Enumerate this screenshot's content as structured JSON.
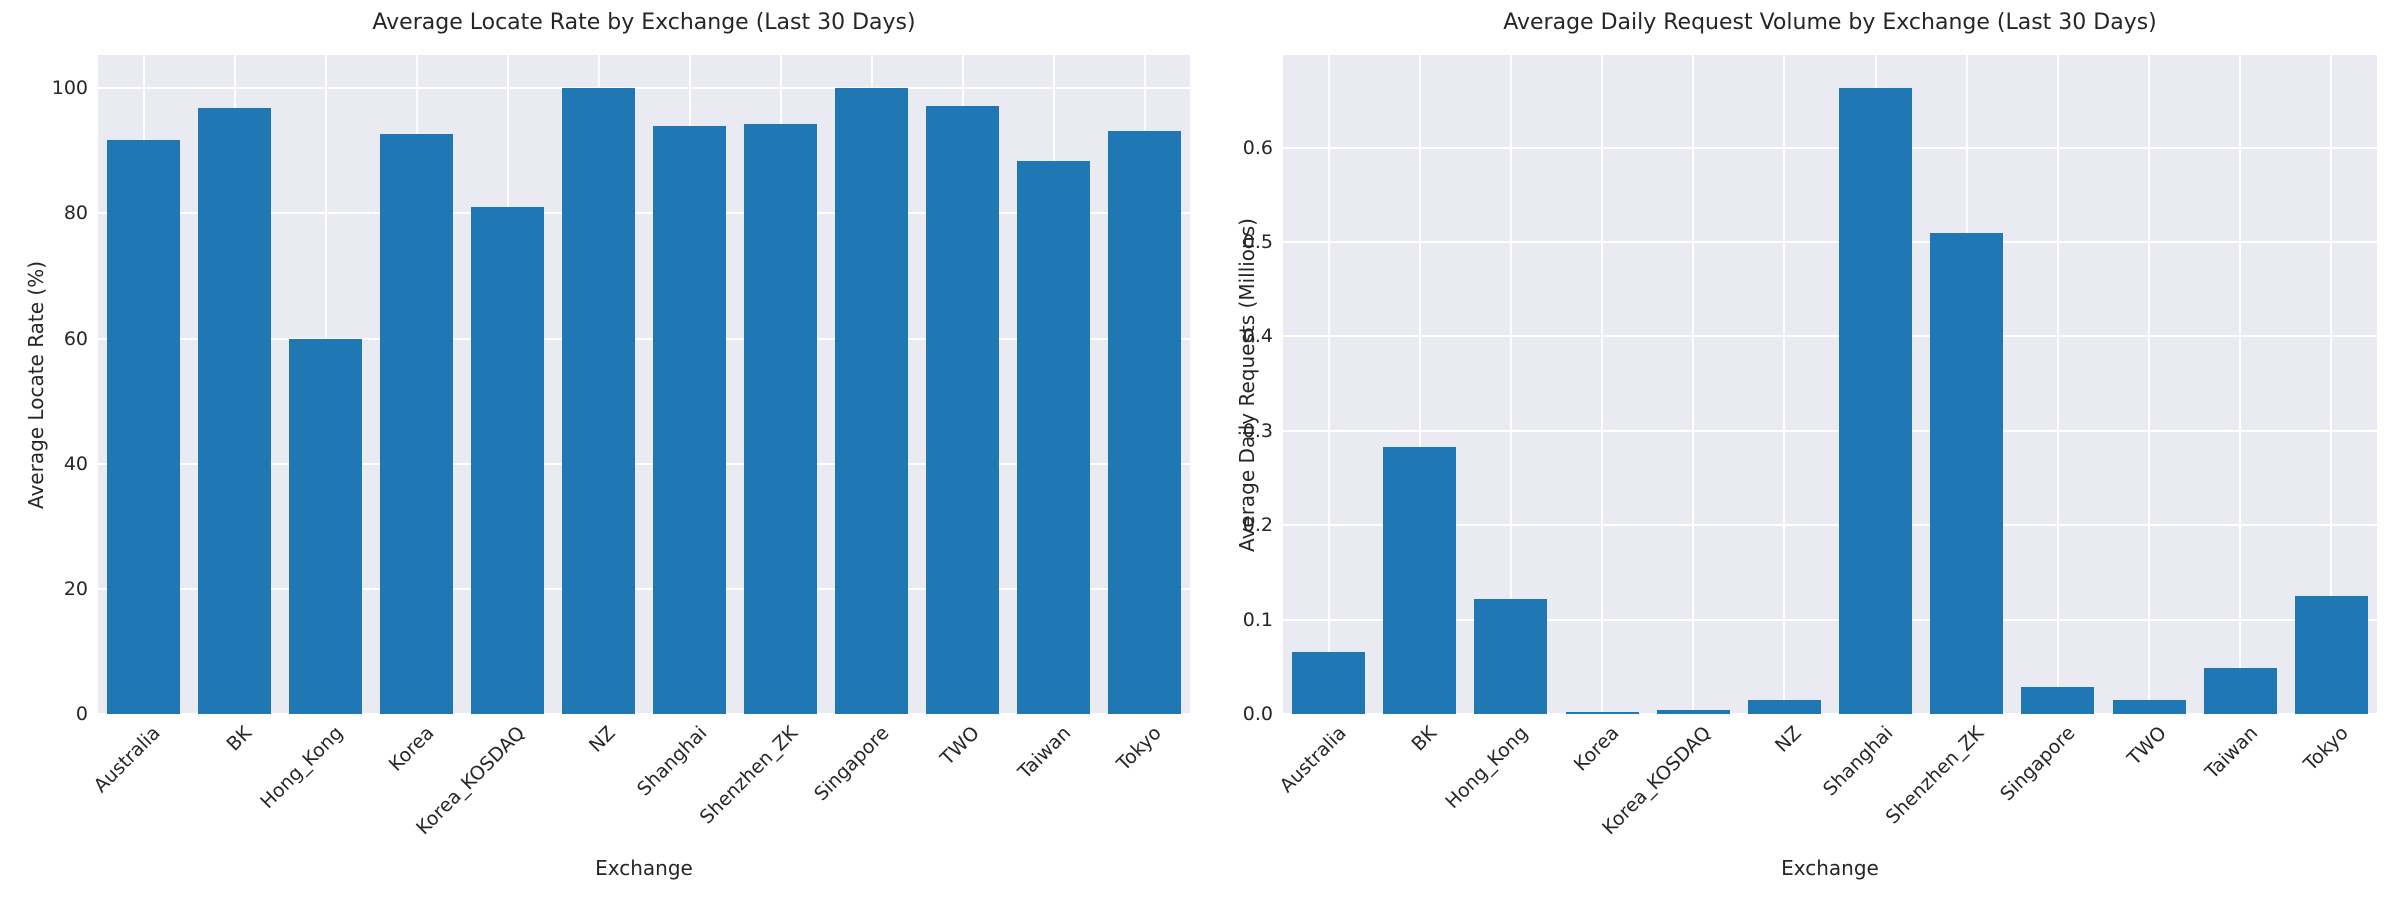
{
  "figure": {
    "background": "#ffffff"
  },
  "colors": {
    "bar": "#1f77b4",
    "plot_background": "#eaeaf2",
    "gridline": "#ffffff",
    "text": "#262626"
  },
  "chart_data": [
    {
      "type": "bar",
      "title": "Average Locate Rate by Exchange (Last 30 Days)",
      "xlabel": "Exchange",
      "ylabel": "Average Locate Rate (%)",
      "categories": [
        "Australia",
        "BK",
        "Hong_Kong",
        "Korea",
        "Korea_KOSDAQ",
        "NZ",
        "Shanghai",
        "Shenzhen_ZK",
        "Singapore",
        "TWO",
        "Taiwan",
        "Tokyo"
      ],
      "values": [
        91.8,
        96.8,
        60.0,
        92.6,
        81.0,
        100.0,
        93.9,
        94.2,
        100.0,
        97.1,
        88.4,
        93.1
      ],
      "ylim": [
        0,
        105.3
      ],
      "yticks": [
        "0",
        "20",
        "40",
        "60",
        "80",
        "100"
      ],
      "grid": true,
      "legend_position": "none",
      "xtick_rotation": 45
    },
    {
      "type": "bar",
      "title": "Average Daily Request Volume by Exchange (Last 30 Days)",
      "xlabel": "Exchange",
      "ylabel": "Average Daily Requests (Millions)",
      "categories": [
        "Australia",
        "BK",
        "Hong_Kong",
        "Korea",
        "Korea_KOSDAQ",
        "NZ",
        "Shanghai",
        "Shenzhen_ZK",
        "Singapore",
        "TWO",
        "Taiwan",
        "Tokyo"
      ],
      "values": [
        0.066,
        0.283,
        0.122,
        0.002,
        0.004,
        0.015,
        0.663,
        0.51,
        0.029,
        0.015,
        0.049,
        0.125
      ],
      "ylim": [
        0,
        0.698
      ],
      "yticks": [
        "0.0",
        "0.1",
        "0.2",
        "0.3",
        "0.4",
        "0.5",
        "0.6"
      ],
      "grid": true,
      "legend_position": "none",
      "xtick_rotation": 45
    }
  ]
}
